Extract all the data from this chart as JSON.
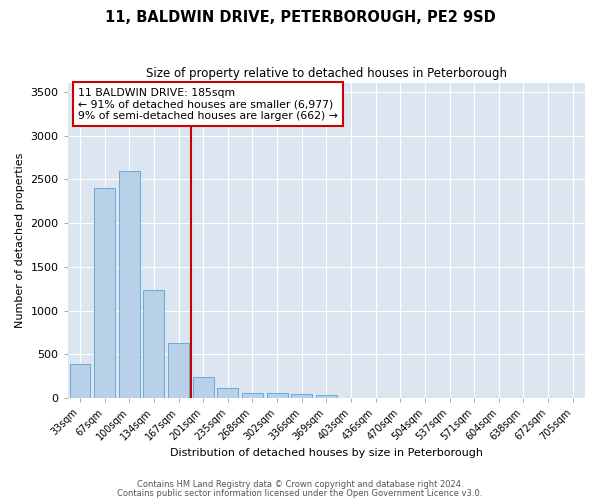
{
  "title": "11, BALDWIN DRIVE, PETERBOROUGH, PE2 9SD",
  "subtitle": "Size of property relative to detached houses in Peterborough",
  "xlabel": "Distribution of detached houses by size in Peterborough",
  "ylabel": "Number of detached properties",
  "bar_color": "#b8d0e8",
  "bar_edge_color": "#6aaad4",
  "background_color": "#dce6f0",
  "grid_color": "#ffffff",
  "fig_background": "#ffffff",
  "annotation_line_color": "#cc0000",
  "annotation_box_edge_color": "#cc0000",
  "annotation_text": "11 BALDWIN DRIVE: 185sqm\n← 91% of detached houses are smaller (6,977)\n9% of semi-detached houses are larger (662) →",
  "categories": [
    "33sqm",
    "67sqm",
    "100sqm",
    "134sqm",
    "167sqm",
    "201sqm",
    "235sqm",
    "268sqm",
    "302sqm",
    "336sqm",
    "369sqm",
    "403sqm",
    "436sqm",
    "470sqm",
    "504sqm",
    "537sqm",
    "571sqm",
    "604sqm",
    "638sqm",
    "672sqm",
    "705sqm"
  ],
  "values": [
    390,
    2400,
    2600,
    1230,
    630,
    240,
    110,
    60,
    55,
    50,
    30,
    0,
    0,
    0,
    0,
    0,
    0,
    0,
    0,
    0,
    0
  ],
  "ylim": [
    0,
    3600
  ],
  "yticks": [
    0,
    500,
    1000,
    1500,
    2000,
    2500,
    3000,
    3500
  ],
  "line_bar_index": 4.5,
  "footnote1": "Contains HM Land Registry data © Crown copyright and database right 2024.",
  "footnote2": "Contains public sector information licensed under the Open Government Licence v3.0."
}
